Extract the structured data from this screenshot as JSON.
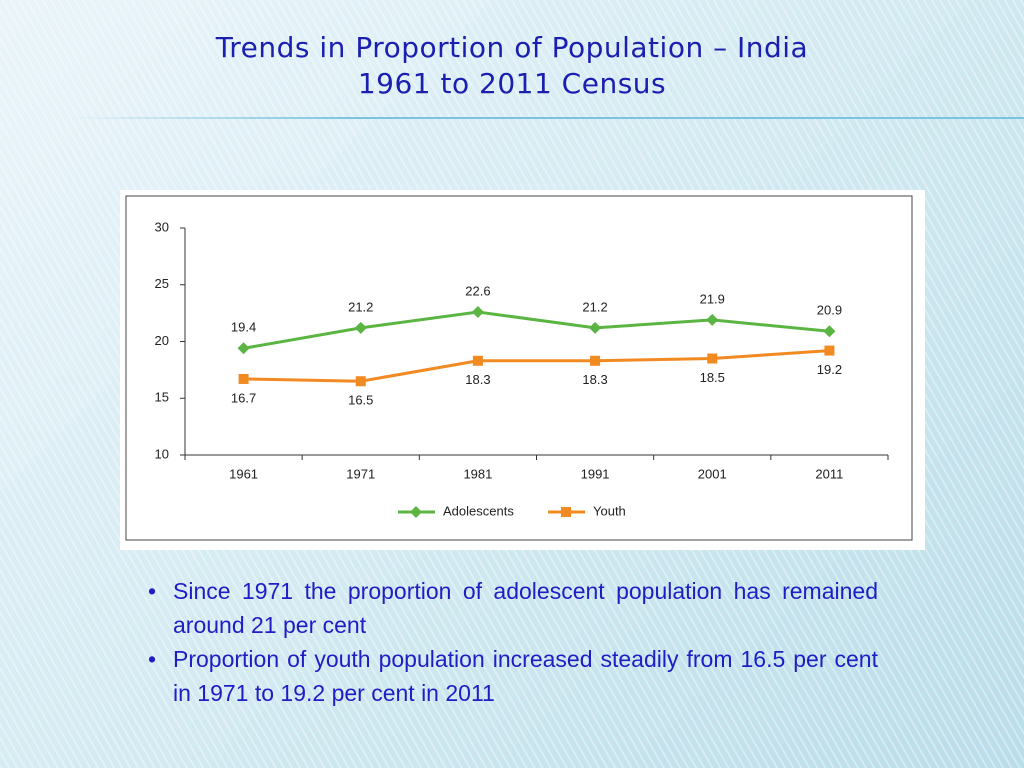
{
  "title": [
    "Trends in Proportion of Population  – India",
    "1961 to 2011 Census"
  ],
  "chart_data": {
    "type": "line",
    "categories": [
      "1961",
      "1971",
      "1981",
      "1991",
      "2001",
      "2011"
    ],
    "series": [
      {
        "name": "Adolescents",
        "color": "#5bb543",
        "marker": "diamond",
        "values": [
          19.4,
          21.2,
          22.6,
          21.2,
          21.9,
          20.9
        ]
      },
      {
        "name": "Youth",
        "color": "#f18a21",
        "marker": "square",
        "values": [
          16.7,
          16.5,
          18.3,
          18.3,
          18.5,
          19.2
        ]
      }
    ],
    "ylim": [
      10,
      30
    ],
    "yticks": [
      10,
      15,
      20,
      25,
      30
    ],
    "legend": "bottom",
    "data_labels": true
  },
  "bullets": [
    "Since 1971 the proportion of adolescent population has remained around 21 per cent",
    "Proportion of youth population increased steadily from 16.5 per cent in 1971 to 19.2 per cent in 2011"
  ]
}
